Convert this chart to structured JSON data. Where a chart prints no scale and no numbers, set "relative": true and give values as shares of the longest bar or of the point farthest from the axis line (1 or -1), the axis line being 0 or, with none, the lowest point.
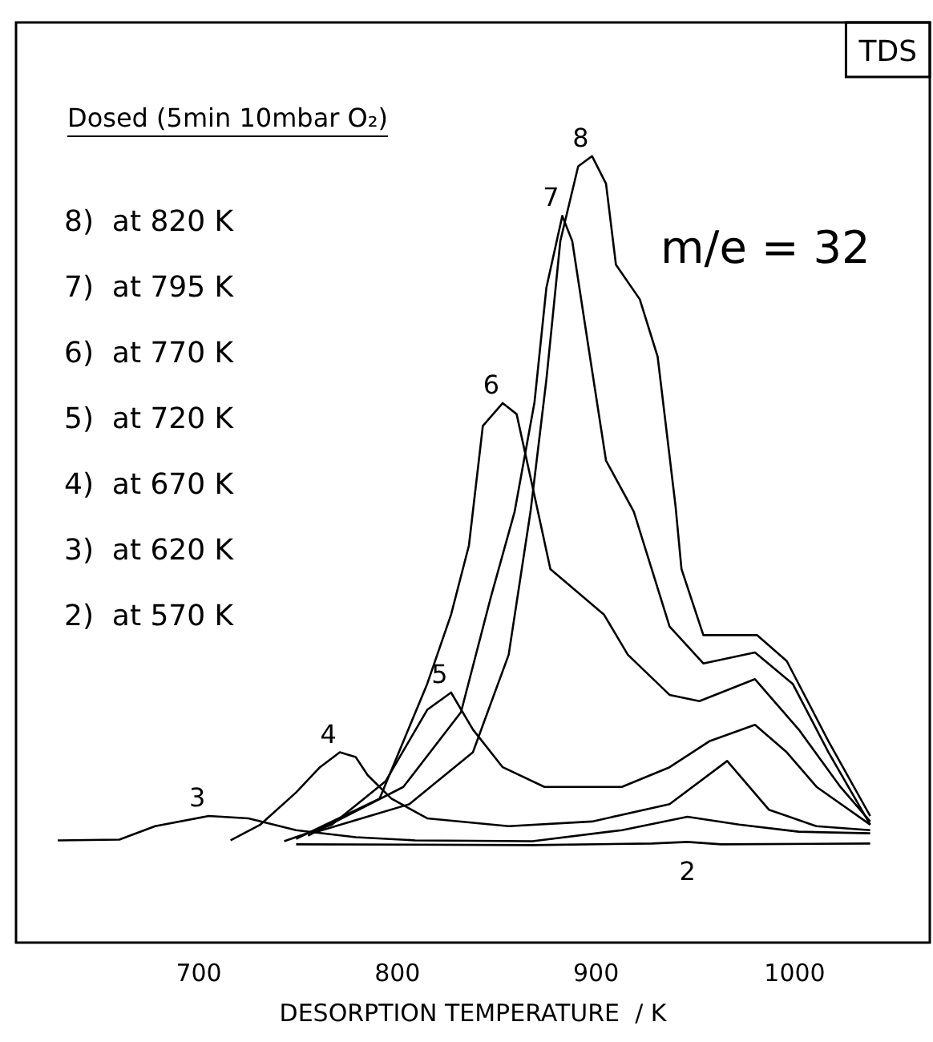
{
  "chart_data": {
    "type": "line",
    "relative": true,
    "xlabel": "DESORPTION TEMPERATURE  / K",
    "xlim": [
      608,
      1068
    ],
    "xticks": [
      700,
      800,
      900,
      1000
    ],
    "grid": false,
    "legend": false,
    "marker": "none",
    "line_style": "solid",
    "annotations": [
      "TDS",
      "Dosed (5min 10mbar O₂)",
      "m/e = 32",
      "8)  at 820 K",
      "7)  at 795 K",
      "6)  at 770 K",
      "5)  at 720 K",
      "4)  at 670 K",
      "3)  at 620 K",
      "2)  at 570 K"
    ],
    "series": [
      {
        "name": "2",
        "color": "#000000",
        "x": [
          749,
          868,
          928,
          946,
          963,
          1038
        ],
        "values": [
          0.125,
          0.124,
          0.126,
          0.128,
          0.125,
          0.126
        ]
      },
      {
        "name": "3",
        "color": "#000000",
        "x": [
          629,
          660,
          678,
          705,
          725,
          749,
          779,
          809,
          868,
          913,
          946,
          972,
          1002,
          1038
        ],
        "values": [
          0.13,
          0.131,
          0.148,
          0.161,
          0.158,
          0.143,
          0.134,
          0.13,
          0.129,
          0.143,
          0.16,
          0.15,
          0.141,
          0.139
        ]
      },
      {
        "name": "4",
        "color": "#000000",
        "x": [
          716,
          731,
          749,
          761,
          771,
          779,
          785,
          797,
          815,
          856,
          898,
          937,
          966,
          987,
          1011,
          1038
        ],
        "values": [
          0.13,
          0.15,
          0.191,
          0.223,
          0.242,
          0.236,
          0.213,
          0.183,
          0.158,
          0.148,
          0.154,
          0.176,
          0.231,
          0.169,
          0.148,
          0.143
        ]
      },
      {
        "name": "5",
        "color": "#000000",
        "x": [
          743,
          767,
          794,
          815,
          827,
          838,
          853,
          874,
          913,
          937,
          957,
          980,
          996,
          1011,
          1038
        ],
        "values": [
          0.129,
          0.15,
          0.205,
          0.296,
          0.318,
          0.271,
          0.223,
          0.198,
          0.198,
          0.223,
          0.256,
          0.277,
          0.242,
          0.198,
          0.15
        ]
      },
      {
        "name": "6",
        "color": "#000000",
        "x": [
          749,
          791,
          815,
          827,
          836,
          843,
          853,
          860,
          868,
          877,
          904,
          916,
          937,
          952,
          980,
          1002,
          1023,
          1038
        ],
        "values": [
          0.132,
          0.183,
          0.329,
          0.417,
          0.505,
          0.657,
          0.686,
          0.672,
          0.58,
          0.475,
          0.417,
          0.366,
          0.315,
          0.307,
          0.335,
          0.271,
          0.198,
          0.154
        ]
      },
      {
        "name": "7",
        "color": "#000000",
        "x": [
          755,
          803,
          832,
          847,
          859,
          869,
          875,
          883,
          888,
          896,
          905,
          919,
          928,
          937,
          954,
          980,
          999,
          1017,
          1038
        ],
        "values": [
          0.136,
          0.198,
          0.293,
          0.439,
          0.548,
          0.687,
          0.833,
          0.924,
          0.892,
          0.76,
          0.613,
          0.548,
          0.475,
          0.402,
          0.355,
          0.369,
          0.329,
          0.242,
          0.15
        ]
      },
      {
        "name": "8",
        "color": "#000000",
        "x": [
          758,
          806,
          838,
          856,
          867,
          875,
          882,
          891,
          898,
          905,
          910,
          922,
          931,
          940,
          943,
          954,
          981,
          996,
          1017,
          1038
        ],
        "values": [
          0.14,
          0.176,
          0.242,
          0.366,
          0.548,
          0.716,
          0.892,
          0.987,
          1.0,
          0.965,
          0.862,
          0.818,
          0.745,
          0.555,
          0.475,
          0.391,
          0.391,
          0.358,
          0.256,
          0.161
        ]
      }
    ]
  }
}
